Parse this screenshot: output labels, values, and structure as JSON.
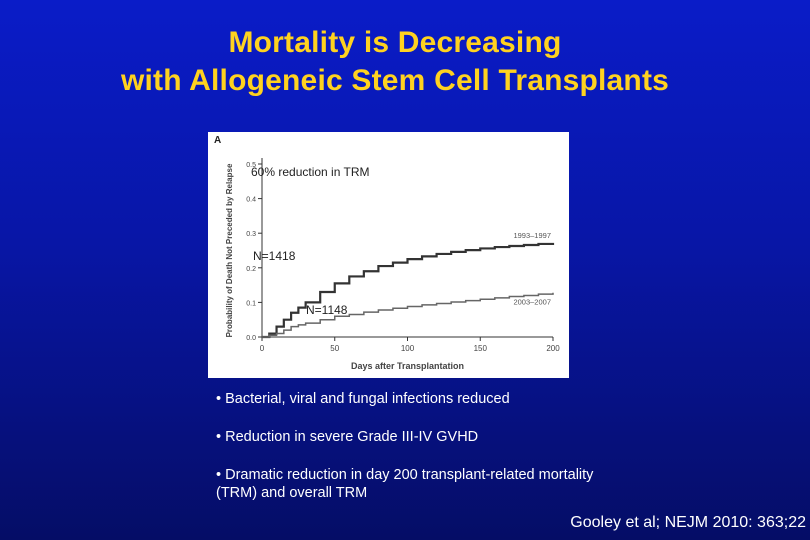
{
  "slide": {
    "title_line1": "Mortality is Decreasing",
    "title_line2": "with Allogeneic Stem Cell Transplants",
    "bullets": [
      "• Bacterial, viral and fungal infections reduced",
      "• Reduction in severe Grade III-IV GVHD",
      "• Dramatic reduction in day 200 transplant-related mortality (TRM) and overall TRM"
    ],
    "citation": "Gooley et al; NEJM 2010: 363;22"
  },
  "colors": {
    "title": "#ffd21f",
    "text": "#ffffff",
    "curve_early": "#333333",
    "curve_late": "#666666"
  },
  "chart_data": {
    "type": "line",
    "panel_label": "A",
    "xlabel": "Days after Transplantation",
    "ylabel": "Probability of Death Not Preceded by Relapse",
    "xlim": [
      0,
      200
    ],
    "ylim": [
      0,
      0.5
    ],
    "x_ticks": [
      0,
      50,
      100,
      150,
      200
    ],
    "x_tick_labels": [
      "0",
      "50",
      "100",
      "150",
      "200"
    ],
    "y_ticks": [
      0.0,
      0.1,
      0.2,
      0.3,
      0.4,
      0.5
    ],
    "y_tick_labels": [
      "0.0",
      "0.1",
      "0.2",
      "0.3",
      "0.4",
      "0.5"
    ],
    "series": [
      {
        "name": "1993–1997",
        "x": [
          0,
          5,
          10,
          15,
          20,
          25,
          30,
          40,
          50,
          60,
          70,
          80,
          90,
          100,
          110,
          120,
          130,
          140,
          150,
          160,
          170,
          180,
          190,
          200
        ],
        "y": [
          0,
          0.01,
          0.03,
          0.05,
          0.07,
          0.085,
          0.1,
          0.13,
          0.155,
          0.175,
          0.19,
          0.205,
          0.215,
          0.225,
          0.233,
          0.24,
          0.246,
          0.251,
          0.256,
          0.26,
          0.263,
          0.266,
          0.269,
          0.272
        ]
      },
      {
        "name": "2003–2007",
        "x": [
          0,
          5,
          10,
          15,
          20,
          25,
          30,
          40,
          50,
          60,
          70,
          80,
          90,
          100,
          110,
          120,
          130,
          140,
          150,
          160,
          170,
          180,
          190,
          200
        ],
        "y": [
          0,
          0.005,
          0.01,
          0.02,
          0.03,
          0.035,
          0.04,
          0.05,
          0.06,
          0.065,
          0.072,
          0.078,
          0.083,
          0.088,
          0.093,
          0.097,
          0.101,
          0.105,
          0.109,
          0.113,
          0.117,
          0.12,
          0.124,
          0.128
        ]
      }
    ],
    "annotations": [
      "60% reduction in TRM",
      "N=1418",
      "N=1148"
    ]
  }
}
